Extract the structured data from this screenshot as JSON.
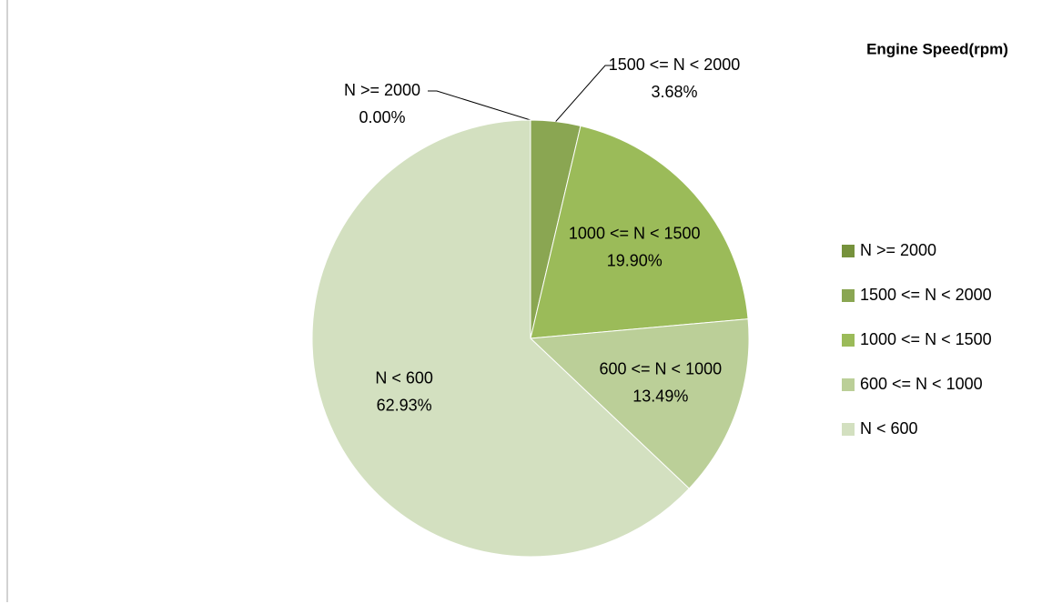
{
  "chart_data": {
    "type": "pie",
    "title": "Engine Speed(rpm)",
    "categories": [
      "N >= 2000",
      "1500 <= N < 2000",
      "1000 <= N < 1500",
      "600 <= N < 1000",
      "N < 600"
    ],
    "values": [
      0,
      3.68,
      19.9,
      13.49,
      62.93
    ],
    "value_labels": [
      "0.00%",
      "3.68%",
      "19.90%",
      "13.49%",
      "62.93%"
    ],
    "colors": [
      "#76923c",
      "#8aa652",
      "#9bbb59",
      "#bbcf98",
      "#d3e0c0"
    ],
    "legend": "right"
  }
}
